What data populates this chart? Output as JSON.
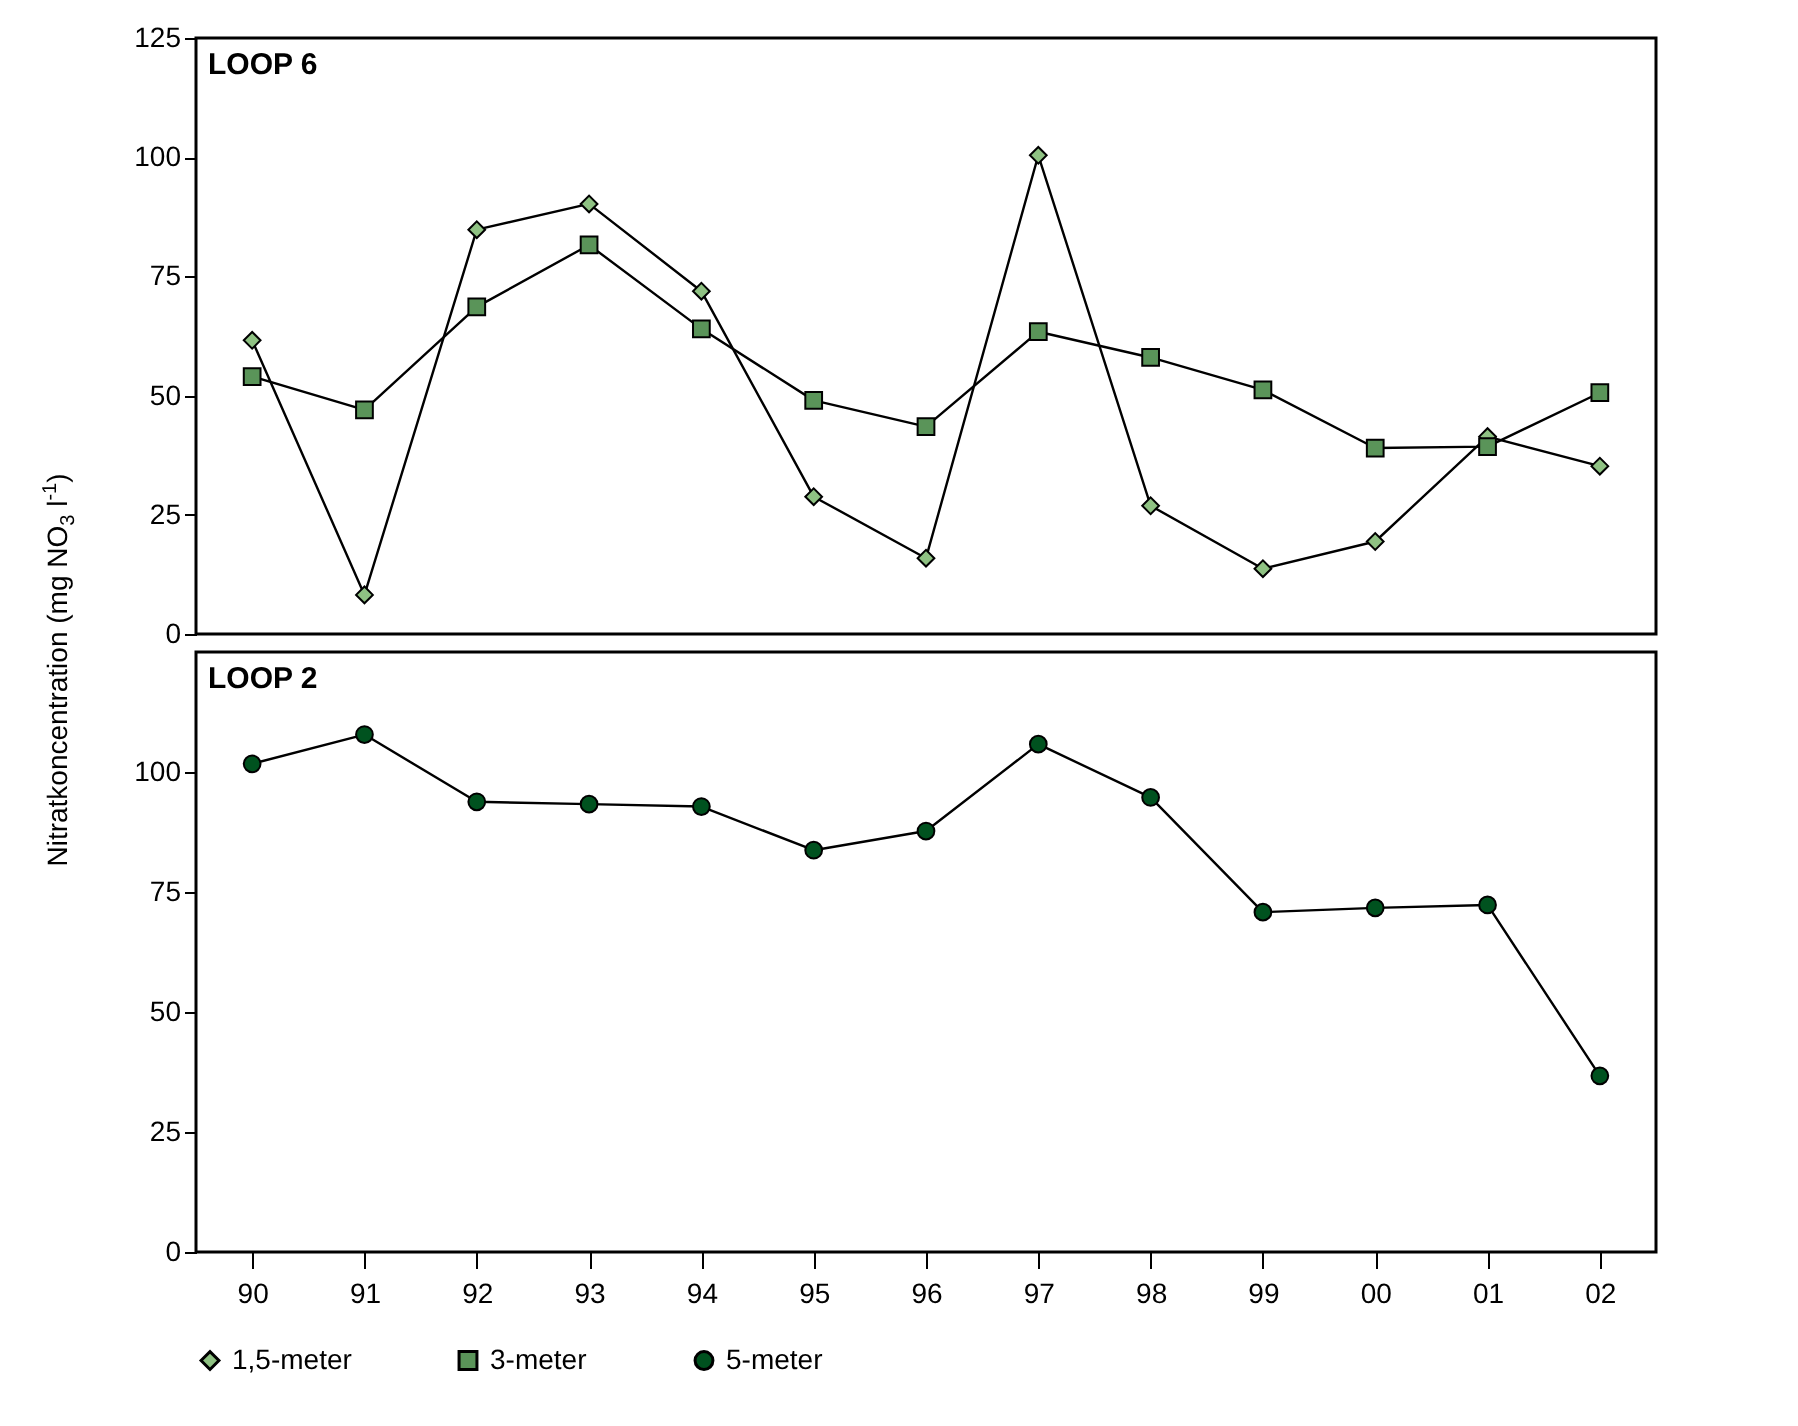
{
  "chart_data": [
    {
      "type": "line",
      "title": "LOOP 6",
      "ylabel": "Nitratkoncentration (mg NO$_{3}$ l$^{-1}$)",
      "categories": [
        "90",
        "91",
        "92",
        "93",
        "94",
        "95",
        "96",
        "97",
        "98",
        "99",
        "00",
        "01",
        "02"
      ],
      "ylim": [
        0,
        125
      ],
      "yticks": [
        0,
        25,
        50,
        75,
        100,
        125
      ],
      "tick_labels": "y",
      "legend": "bottom",
      "series": [
        {
          "name": "1,5-meter",
          "color": "#8fc283",
          "marker": "diamond",
          "values": [
            61.6,
            8.2,
            84.8,
            90.2,
            71.9,
            28.8,
            15.9,
            100.4,
            26.9,
            13.7,
            19.4,
            41.4,
            35.2
          ]
        },
        {
          "name": "3-meter",
          "color": "#5a9459",
          "marker": "square",
          "values": [
            54,
            47,
            68.6,
            81.6,
            64,
            49,
            43.5,
            63.4,
            58,
            51.2,
            39,
            39.3,
            50.6
          ]
        }
      ]
    },
    {
      "type": "line",
      "title": "LOOP 2",
      "categories": [
        "90",
        "91",
        "92",
        "93",
        "94",
        "95",
        "96",
        "97",
        "98",
        "99",
        "00",
        "01",
        "02"
      ],
      "ylim": [
        0,
        125
      ],
      "yticks": [
        0,
        25,
        50,
        75,
        100
      ],
      "legend": "bottom",
      "series": [
        {
          "name": "5-meter",
          "color": "#00521f",
          "marker": "circle",
          "values": [
            101.7,
            107.8,
            93.8,
            93.3,
            92.8,
            83.7,
            87.7,
            105.8,
            94.7,
            70.8,
            71.7,
            72.3,
            36.7
          ]
        }
      ]
    }
  ]
}
